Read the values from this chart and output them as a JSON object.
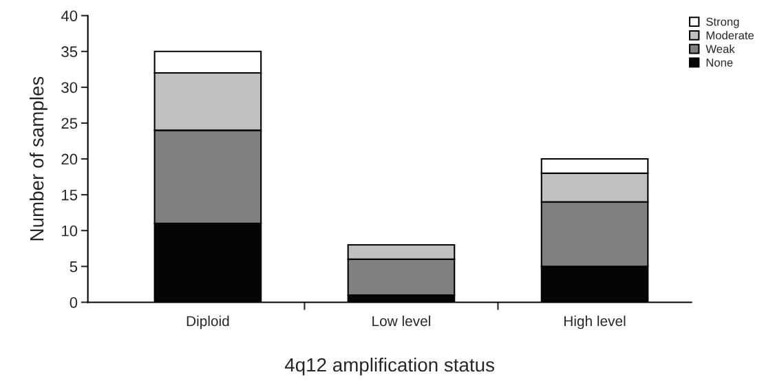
{
  "chart_data": {
    "type": "bar",
    "stacked": true,
    "xlabel": "4q12 amplification status",
    "ylabel": "Number of samples",
    "categories": [
      "Diploid",
      "Low level",
      "High level"
    ],
    "series": [
      {
        "name": "None",
        "color": "#050505",
        "values": [
          11,
          1,
          5
        ]
      },
      {
        "name": "Weak",
        "color": "#808080",
        "values": [
          13,
          5,
          9
        ]
      },
      {
        "name": "Moderate",
        "color": "#c0c0c0",
        "values": [
          8,
          2,
          4
        ]
      },
      {
        "name": "Strong",
        "color": "#ffffff",
        "values": [
          3,
          0,
          2
        ]
      }
    ],
    "ylim": [
      0,
      40
    ],
    "yticks": [
      0,
      5,
      10,
      15,
      20,
      25,
      30,
      35,
      40
    ],
    "grid": false,
    "legend": "top right"
  }
}
